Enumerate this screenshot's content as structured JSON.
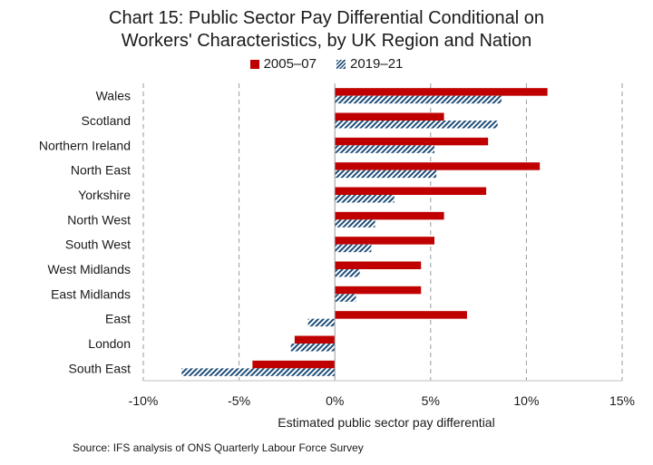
{
  "chart_data": {
    "type": "bar",
    "orientation": "horizontal",
    "title_line1": "Chart 15: Public Sector Pay Differential Conditional on",
    "title_line2": "Workers' Characteristics, by UK Region and Nation",
    "categories": [
      "Wales",
      "Scotland",
      "Northern Ireland",
      "North East",
      "Yorkshire",
      "North West",
      "South West",
      "West Midlands",
      "East Midlands",
      "East",
      "London",
      "South East"
    ],
    "series": [
      {
        "name": "2005–07",
        "color": "#c00000",
        "values": [
          11.1,
          5.7,
          8.0,
          10.7,
          7.9,
          5.7,
          5.2,
          4.5,
          4.5,
          6.9,
          -2.1,
          -4.3
        ]
      },
      {
        "name": "2019–21",
        "color": "#1f4e79",
        "pattern": "hatched",
        "values": [
          8.7,
          8.5,
          5.2,
          5.3,
          3.1,
          2.1,
          1.9,
          1.3,
          1.1,
          -1.4,
          -2.3,
          -8.0
        ]
      }
    ],
    "xlim": [
      -10,
      15
    ],
    "xticks": [
      -10,
      -5,
      0,
      5,
      10,
      15
    ],
    "xtick_labels": [
      "-10%",
      "-5%",
      "0%",
      "5%",
      "10%",
      "15%"
    ],
    "xlabel": "Estimated public sector pay differential",
    "ylabel": "",
    "legend_position": "top-center",
    "grid": "vertical-dashed"
  },
  "source": "Source: IFS analysis of ONS Quarterly Labour Force Survey"
}
